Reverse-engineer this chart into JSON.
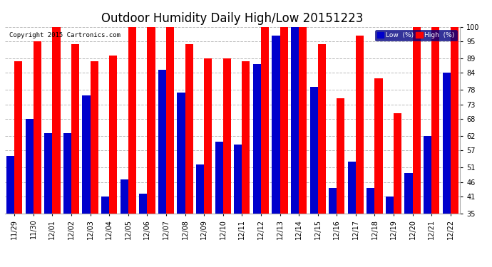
{
  "title": "Outdoor Humidity Daily High/Low 20151223",
  "copyright": "Copyright 2015 Cartronics.com",
  "labels": [
    "11/29",
    "11/30",
    "12/01",
    "12/02",
    "12/03",
    "12/04",
    "12/05",
    "12/06",
    "12/07",
    "12/08",
    "12/09",
    "12/10",
    "12/11",
    "12/12",
    "12/13",
    "12/14",
    "12/15",
    "12/16",
    "12/17",
    "12/18",
    "12/19",
    "12/20",
    "12/21",
    "12/22"
  ],
  "high": [
    88,
    95,
    100,
    94,
    88,
    90,
    100,
    100,
    100,
    94,
    89,
    89,
    88,
    100,
    100,
    100,
    94,
    75,
    97,
    82,
    70,
    100,
    100,
    100
  ],
  "low": [
    55,
    68,
    63,
    63,
    76,
    41,
    47,
    42,
    85,
    77,
    52,
    60,
    59,
    87,
    97,
    100,
    79,
    44,
    53,
    44,
    41,
    49,
    62,
    84
  ],
  "ymin": 35,
  "ymax": 100,
  "yticks": [
    35,
    41,
    46,
    51,
    57,
    62,
    68,
    73,
    78,
    84,
    89,
    95,
    100
  ],
  "bar_width": 0.42,
  "high_color": "#ff0000",
  "low_color": "#0000cc",
  "bg_color": "#ffffff",
  "grid_color": "#bbbbbb",
  "title_fontsize": 12,
  "tick_fontsize": 7,
  "legend_low_label": "Low  (%)",
  "legend_high_label": "High  (%)"
}
